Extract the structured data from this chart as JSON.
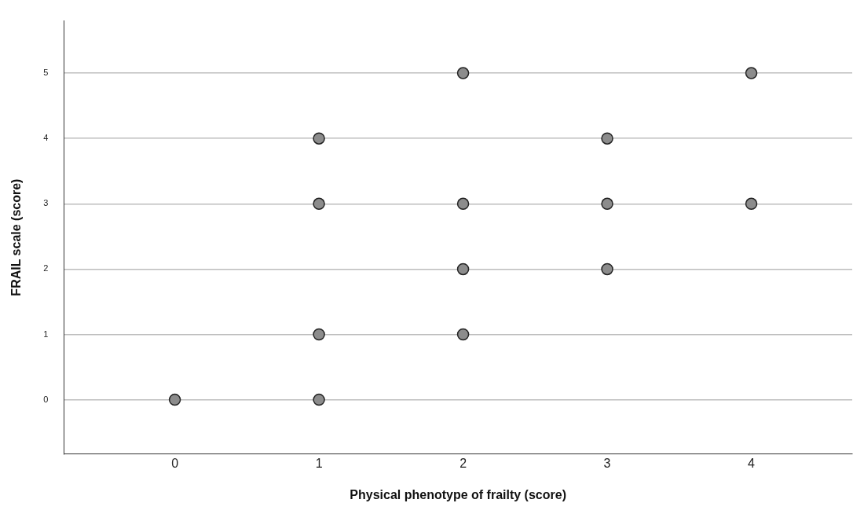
{
  "chart_data": {
    "type": "scatter",
    "xlabel": "Physical phenotype of frailty (score)",
    "ylabel": "FRAIL scale (score)",
    "x": [
      0,
      1,
      1,
      1,
      1,
      2,
      2,
      2,
      2,
      3,
      3,
      3,
      4,
      4
    ],
    "series": [
      {
        "color": "#8c8c8c",
        "values": [
          0,
          0,
          1,
          3,
          4,
          1,
          2,
          3,
          5,
          2,
          3,
          4,
          3,
          5
        ]
      }
    ],
    "xlim": [
      -0.77,
      4.7
    ],
    "xticks": [
      0,
      1,
      2,
      3,
      4
    ],
    "ylim": [
      -0.83,
      5.8
    ],
    "yticks": [
      0,
      1,
      2,
      3,
      4,
      5
    ],
    "grid": "y",
    "legend": false,
    "marker": "circle"
  }
}
